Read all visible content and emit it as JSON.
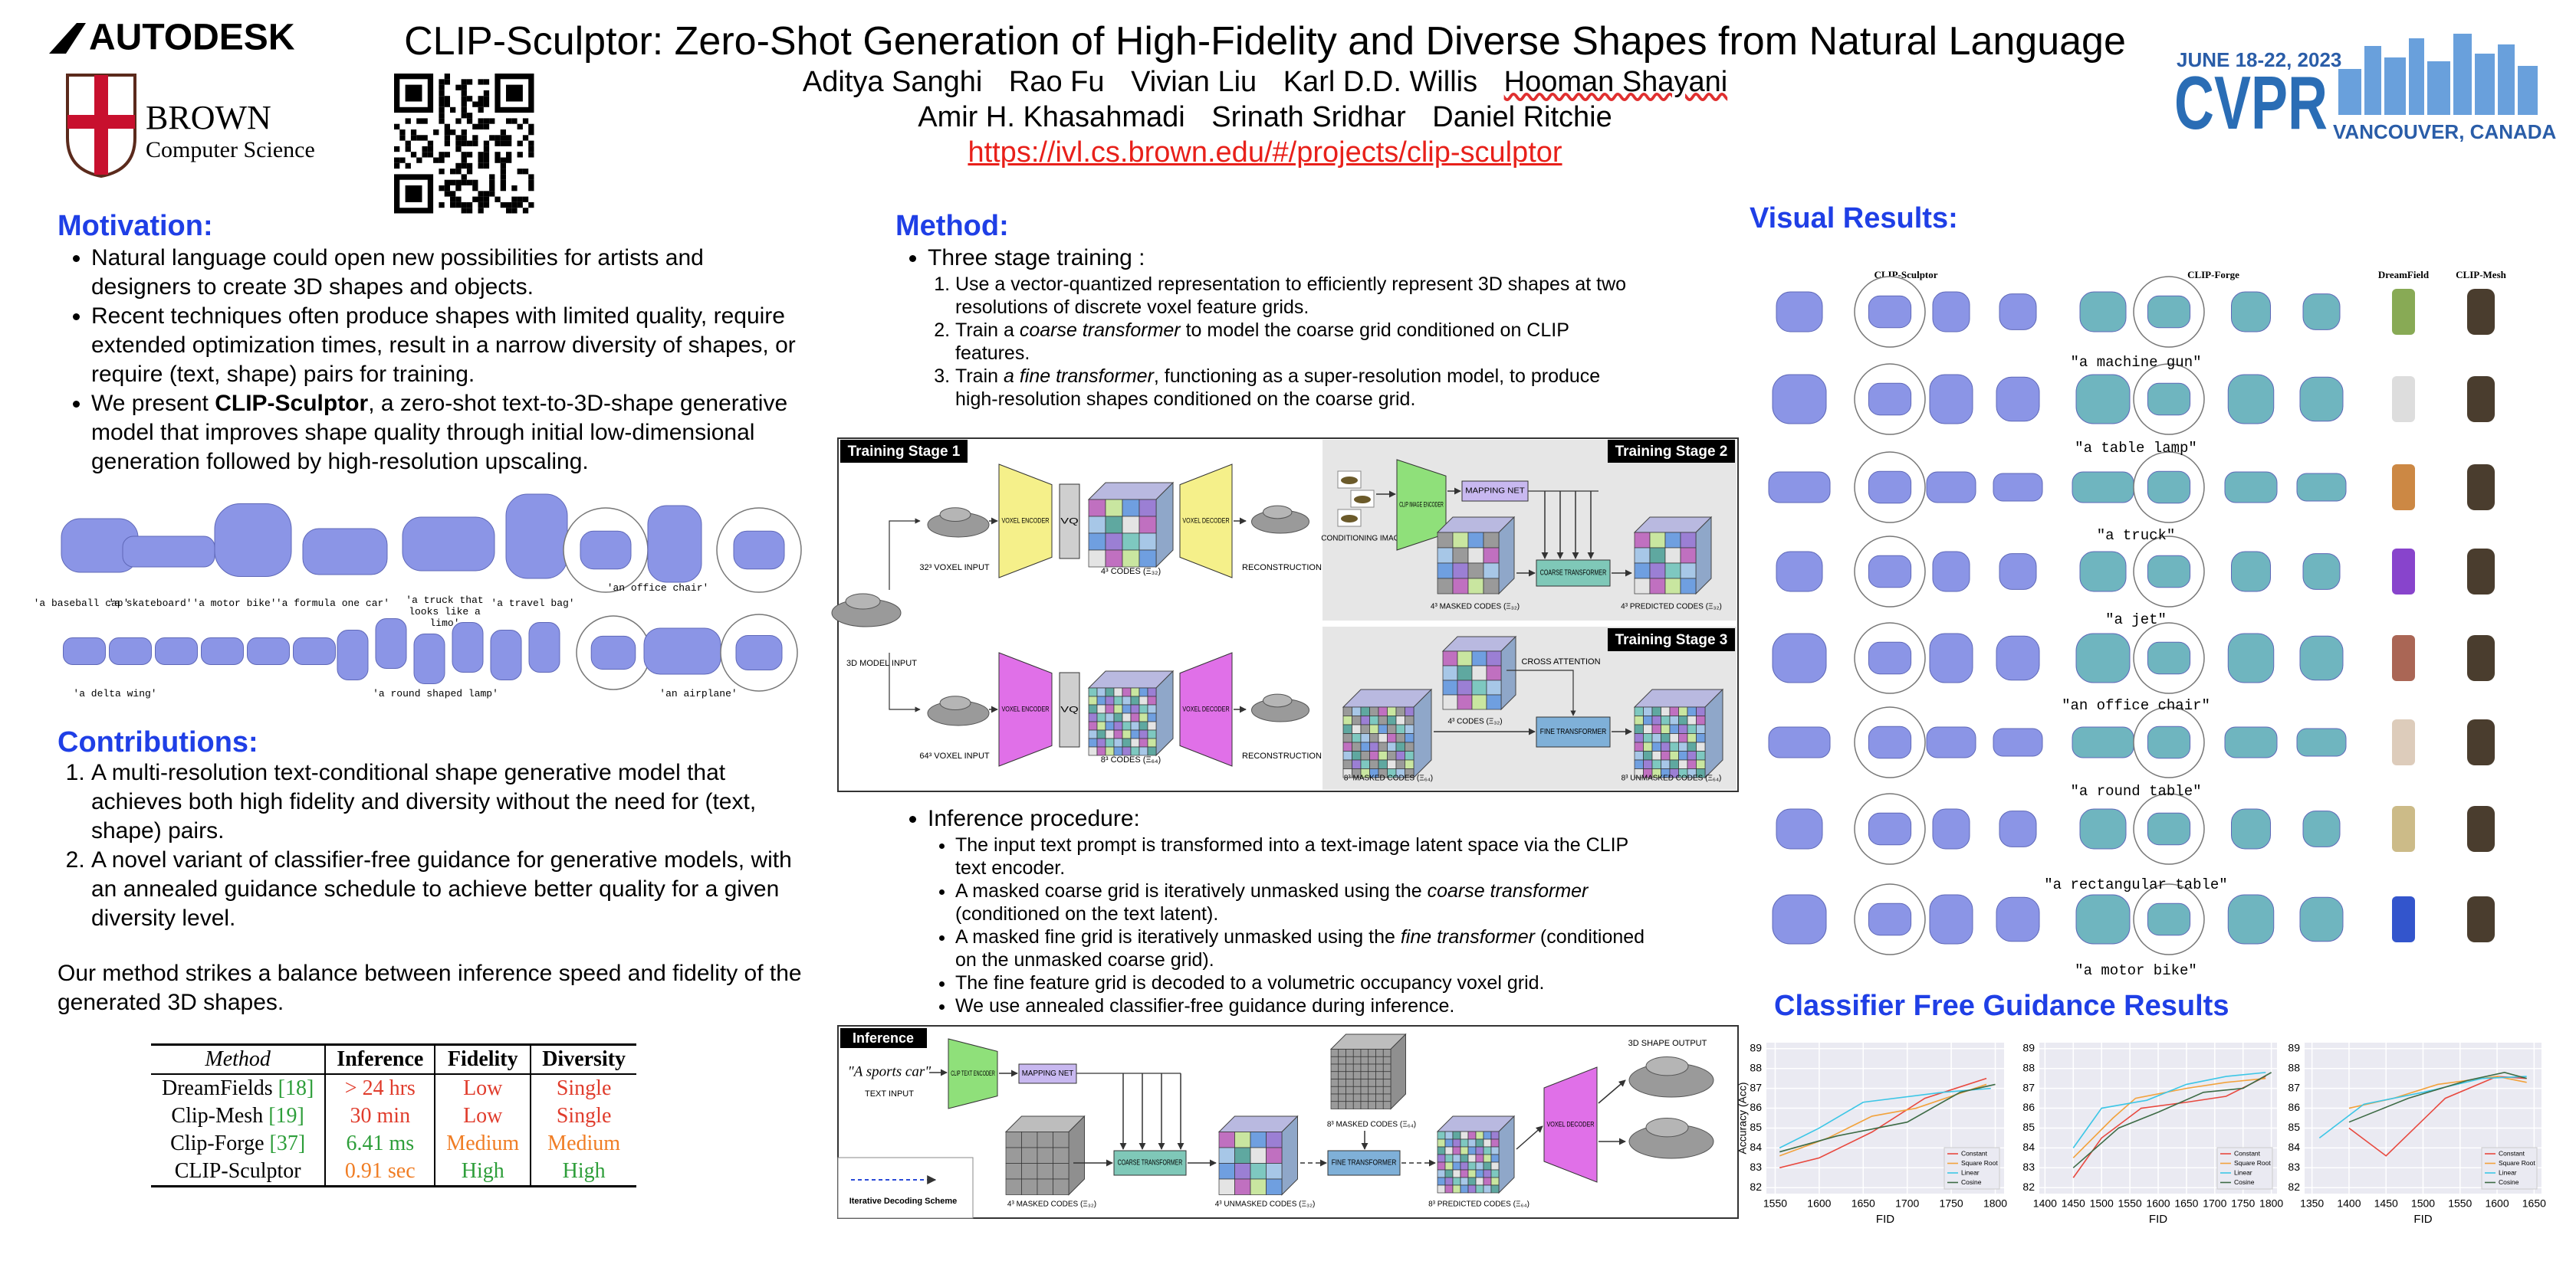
{
  "header": {
    "autodesk": "AUTODESK",
    "brown": "BROWN",
    "brown_sub": "Computer Science",
    "conference_date": "JUNE 18-22, 2023",
    "conference": "CVPR",
    "conference_location": "VANCOUVER, CANADA",
    "title": "CLIP-Sculptor: Zero-Shot Generation of High-Fidelity and Diverse Shapes from Natural Language",
    "authors": [
      [
        "Aditya Sanghi",
        "Rao Fu",
        "Vivian Liu",
        "Karl D.D. Willis",
        "Hooman Shayani"
      ],
      [
        "Amir H. Khasahmadi",
        "Srinath Sridhar",
        "Daniel Ritchie"
      ]
    ],
    "url": "https://ivl.cs.brown.edu/#/projects/clip-sculptor"
  },
  "motivation": {
    "heading": "Motivation:",
    "bullets": [
      [
        "Natural language could open new possibilities for artists and designers to create 3D shapes and objects."
      ],
      [
        "Recent techniques often produce shapes with limited quality, require extended optimization times, result in a narrow diversity of shapes, or require (text, shape) pairs for training."
      ],
      [
        "We present ",
        "CLIP-Sculptor",
        ", a zero-shot text-to-3D-shape generative model that improves shape quality through initial low-dimensional generation followed by high-resolution upscaling."
      ]
    ],
    "figure_captions": [
      "'a baseball cap'",
      "'a skateboard'",
      "'a motor bike'",
      "'a formula one car'",
      "'a truck that looks like a limo'",
      "'a travel bag'",
      "'an office chair'",
      "'a delta wing'",
      "'a round shaped lamp'",
      "'an airplane'"
    ]
  },
  "contributions": {
    "heading": "Contributions:",
    "items": [
      "A multi-resolution text-conditional shape generative model that achieves both high fidelity and diversity without the need for (text, shape) pairs.",
      "A novel variant of classifier-free guidance for generative models, with an annealed guidance schedule to achieve better quality for a given diversity level."
    ],
    "summary": "Our method strikes a balance between inference speed and fidelity of the generated 3D shapes."
  },
  "table": {
    "header": [
      "Method",
      "Inference",
      "Fidelity",
      "Diversity"
    ],
    "rows": [
      {
        "method": "DreamFields",
        "ref": "[18]",
        "inference": "> 24 hrs",
        "fidelity": "Low",
        "diversity": "Single"
      },
      {
        "method": "Clip-Mesh",
        "ref": "[19]",
        "inference": "30 min",
        "fidelity": "Low",
        "diversity": "Single"
      },
      {
        "method": "Clip-Forge",
        "ref": "[37]",
        "inference": "6.41 ms",
        "fidelity": "Medium",
        "diversity": "Medium"
      },
      {
        "method": "CLIP-Sculptor",
        "inference": "0.91 sec",
        "fidelity": "High",
        "diversity": "High"
      }
    ]
  },
  "method": {
    "heading": "Method:",
    "training_heading": "Three stage training :",
    "training_steps": [
      [
        "Use a vector-quantized representation to efficiently represent 3D shapes at two resolutions of discrete voxel feature grids."
      ],
      [
        "Train a ",
        "coarse transformer",
        " to model the coarse grid conditioned on CLIP features."
      ],
      [
        "Train ",
        "a fine transformer",
        ", functioning as a super-resolution model, to produce high-resolution shapes conditioned on the coarse grid."
      ]
    ],
    "inference_heading": "Inference procedure:",
    "inference_steps": [
      [
        "The input text prompt is transformed into a text-image latent space via the CLIP text encoder."
      ],
      [
        "A masked coarse grid is iteratively unmasked using the ",
        "coarse transformer",
        " (conditioned on the text latent)."
      ],
      [
        "A masked fine grid is iteratively unmasked using the ",
        "fine transformer",
        " (conditioned on the unmasked coarse grid)."
      ],
      [
        "The fine feature grid is decoded to a volumetric occupancy voxel grid."
      ],
      [
        "We use annealed classifier-free guidance during inference."
      ]
    ]
  },
  "training_figure": {
    "stage1": "Training Stage 1",
    "stage2": "Training Stage 2",
    "stage3": "Training Stage 3",
    "model_input": "3D MODEL INPUT",
    "voxel32": "32³ VOXEL INPUT",
    "voxel64": "64³ VOXEL INPUT",
    "encoder": "VOXEL ENCODER",
    "decoder": "VOXEL DECODER",
    "vq": "VQ",
    "codes32": "4³ CODES (Ξ₃₂)",
    "codes64": "8³ CODES (Ξ₆₄)",
    "reconstruction": "RECONSTRUCTION",
    "conditioning": "CONDITIONING IMAGES",
    "clip_image": "CLIP IMAGE ENCODER",
    "mapping": "MAPPING NET",
    "masked32": "4³ MASKED CODES (Ξ₃₂)",
    "coarse": "COARSE TRANSFORMER",
    "predicted32": "4³ PREDICTED CODES (Ξ₃₂)",
    "cross_attention": "CROSS ATTENTION",
    "masked64": "8³ MASKED CODES (Ξ₆₄)",
    "fine": "FINE TRANSFORMER",
    "unmasked64": "8³ UNMASKED CODES (Ξ₆₄)"
  },
  "inference_figure": {
    "label": "Inference",
    "prompt": "\"A sports car\"",
    "text_input": "TEXT INPUT",
    "clip_text": "CLIP TEXT ENCODER",
    "mapping": "MAPPING NET",
    "coarse": "COARSE TRANSFORMER",
    "masked32": "4³ MASKED CODES (Ξ₃₂)",
    "unmasked32": "4³ UNMASKED CODES (Ξ₃₂)",
    "masked64": "8³ MASKED CODES (Ξ₆₄)",
    "fine": "FINE TRANSFORMER",
    "predicted64": "8³ PREDICTED CODES (Ξ₆₄)",
    "decoder": "VOXEL DECODER",
    "output": "3D SHAPE OUTPUT",
    "iterative": "Iterative Decoding Scheme"
  },
  "visual_results": {
    "heading": "Visual Results:",
    "columns": [
      "CLIP-Sculptor",
      "CLIP-Forge",
      "DreamField",
      "CLIP-Mesh"
    ],
    "prompts": [
      "\"a machine gun\"",
      "\"a table lamp\"",
      "\"a truck\"",
      "\"a jet\"",
      "\"an office chair\"",
      "\"a round table\"",
      "\"a rectangular table\"",
      "\"a motor bike\""
    ]
  },
  "guidance": {
    "heading": "Classifier Free Guidance Results"
  },
  "chart_data": [
    {
      "type": "line",
      "xlabel": "FID",
      "ylabel": "Accuracy (Acc)",
      "xlim": [
        1540,
        1810
      ],
      "ylim": [
        81.7,
        89.3
      ],
      "xticks": [
        1550,
        1600,
        1650,
        1700,
        1750,
        1800
      ],
      "yticks": [
        82,
        83,
        84,
        85,
        86,
        87,
        88,
        89
      ],
      "grid": true,
      "legend": "lower right",
      "series": [
        {
          "name": "Constant",
          "color": "#e8483e",
          "x": [
            1555,
            1600,
            1660,
            1720,
            1790
          ],
          "values": [
            83,
            83.5,
            84.8,
            86.5,
            87.5
          ]
        },
        {
          "name": "Square Root",
          "color": "#f2a23c",
          "x": [
            1555,
            1610,
            1660,
            1710,
            1790
          ],
          "values": [
            83.6,
            84.5,
            85.6,
            86,
            87.2
          ]
        },
        {
          "name": "Linear",
          "color": "#3cc6e6",
          "x": [
            1555,
            1600,
            1650,
            1740,
            1795
          ],
          "values": [
            84,
            85,
            86.3,
            86.8,
            87
          ]
        },
        {
          "name": "Cosine",
          "color": "#3d6b45",
          "x": [
            1555,
            1620,
            1700,
            1760,
            1800
          ],
          "values": [
            83.8,
            84.6,
            85.3,
            86.8,
            87.2
          ]
        }
      ]
    },
    {
      "type": "line",
      "xlabel": "FID",
      "xlim": [
        1390,
        1810
      ],
      "ylim": [
        81.7,
        89.3
      ],
      "xticks": [
        1400,
        1450,
        1500,
        1550,
        1600,
        1650,
        1700,
        1750,
        1800
      ],
      "yticks": [
        82,
        83,
        84,
        85,
        86,
        87,
        88,
        89
      ],
      "grid": true,
      "legend": "lower right",
      "series": [
        {
          "name": "Constant",
          "color": "#e8483e",
          "x": [
            1450,
            1500,
            1570,
            1650,
            1720,
            1790
          ],
          "values": [
            82.5,
            84.5,
            86,
            86.3,
            86.6,
            87.6
          ]
        },
        {
          "name": "Square Root",
          "color": "#f2a23c",
          "x": [
            1450,
            1520,
            1560,
            1650,
            1720,
            1790
          ],
          "values": [
            83.5,
            85.5,
            86.5,
            87,
            87.3,
            87.5
          ]
        },
        {
          "name": "Linear",
          "color": "#3cc6e6",
          "x": [
            1450,
            1500,
            1580,
            1650,
            1720,
            1790
          ],
          "values": [
            84,
            86,
            86.4,
            87.2,
            87.6,
            87.8
          ]
        },
        {
          "name": "Cosine",
          "color": "#3d6b45",
          "x": [
            1450,
            1530,
            1600,
            1680,
            1750,
            1800
          ],
          "values": [
            83,
            85,
            85.8,
            86.8,
            87,
            87.8
          ]
        }
      ]
    },
    {
      "type": "line",
      "xlabel": "FID",
      "xlim": [
        1340,
        1660
      ],
      "ylim": [
        81.7,
        89.3
      ],
      "xticks": [
        1350,
        1400,
        1450,
        1500,
        1550,
        1600,
        1650
      ],
      "yticks": [
        82,
        83,
        84,
        85,
        86,
        87,
        88,
        89
      ],
      "grid": true,
      "legend": "lower right",
      "series": [
        {
          "name": "Constant",
          "color": "#e8483e",
          "x": [
            1400,
            1450,
            1530,
            1600,
            1640
          ],
          "values": [
            85,
            83.6,
            86.5,
            87.6,
            87.5
          ]
        },
        {
          "name": "Square Root",
          "color": "#f2a23c",
          "x": [
            1400,
            1460,
            1520,
            1600,
            1640
          ],
          "values": [
            86,
            86.5,
            87.2,
            87.6,
            87.3
          ]
        },
        {
          "name": "Linear",
          "color": "#3cc6e6",
          "x": [
            1360,
            1420,
            1500,
            1580,
            1640
          ],
          "values": [
            84.5,
            86.2,
            86.8,
            87.5,
            87.6
          ]
        },
        {
          "name": "Cosine",
          "color": "#3d6b45",
          "x": [
            1400,
            1480,
            1560,
            1610,
            1640
          ],
          "values": [
            85.3,
            86.5,
            87.4,
            87.8,
            87.5
          ]
        }
      ]
    }
  ]
}
